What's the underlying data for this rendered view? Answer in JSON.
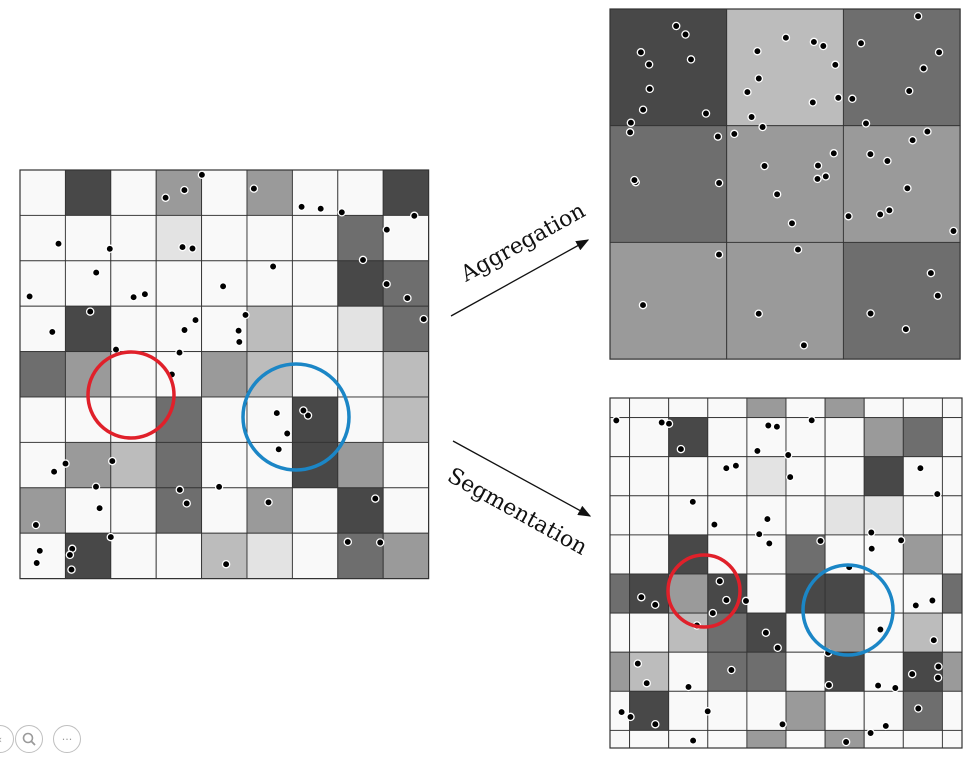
{
  "labels": {
    "aggregation": "Aggregation",
    "segmentation": "Segmentation"
  },
  "controls": [
    {
      "name": "previous-control",
      "icon": "arrow-left-icon",
      "glyph": "‹"
    },
    {
      "name": "zoom-control",
      "icon": "magnifier-icon",
      "glyph": ""
    },
    {
      "name": "more-control",
      "icon": "ellipsis-icon",
      "glyph": "···"
    }
  ],
  "colors": {
    "white": "#f9f9f9",
    "light": "#e3e3e3",
    "lightmid": "#bcbcbc",
    "mid": "#9a9a9a",
    "darkmid": "#6e6e6e",
    "dark": "#484848",
    "gridline": "#333333",
    "red_circle": "#e0202a",
    "blue_circle": "#1b86c6"
  },
  "grids": {
    "original": {
      "rows": 9,
      "cols": 9,
      "shades": [
        "WDWMWMWWD",
        "WWWLWWWCW",
        "WWWWWWWDC",
        "WDWWWSWLC",
        "CMWWMSWWS",
        "WWWCWWDWS",
        "WMSCWWDMW",
        "MWWCWMWDW",
        "WDWWSLWCM"
      ]
    },
    "aggregated": {
      "rows": 3,
      "cols": 3,
      "shades": [
        "DSC",
        "CMM",
        "MMC"
      ]
    },
    "segmented": {
      "rows": 9,
      "cols": 9,
      "shades": [
        "WWWWMWMWW",
        "WWDWWWWMC",
        "WWWWLWWDW",
        "WWWWWWLLW",
        "WWDWWCWWM",
        "CDMDWDDWW",
        "WWSCDWMWS",
        "MSWCCWDWD",
        "WDWWWMWWC"
      ]
    }
  }
}
